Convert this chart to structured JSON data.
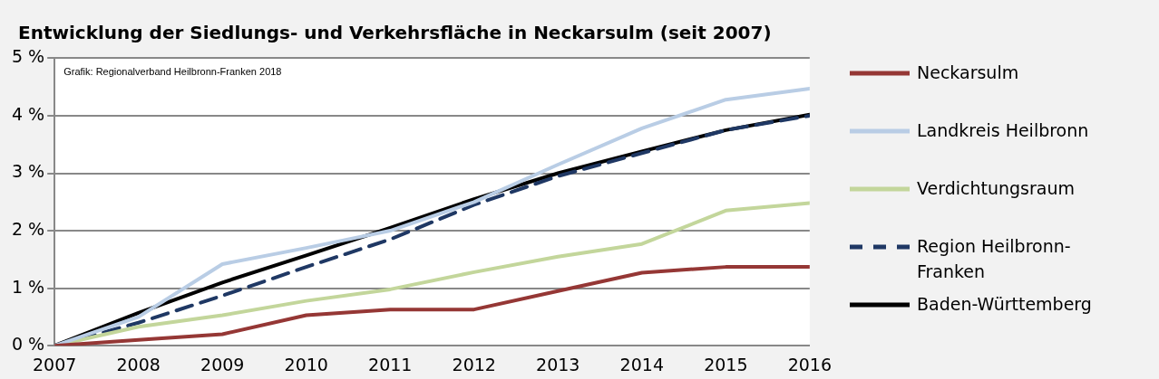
{
  "chart_data": {
    "type": "line",
    "title": "Entwicklung der Siedlungs- und Verkehrsfläche in Neckarsulm (seit 2007)",
    "annotations": [
      "Grafik: Regionalverband Heilbronn-Franken 2018"
    ],
    "x": [
      2007,
      2008,
      2009,
      2010,
      2011,
      2012,
      2013,
      2014,
      2015,
      2016
    ],
    "xlim": [
      2007,
      2016
    ],
    "xticks": [
      2007,
      2008,
      2009,
      2010,
      2011,
      2012,
      2013,
      2014,
      2015,
      2016
    ],
    "ylim": [
      0,
      5
    ],
    "yticks": [
      {
        "value": 0,
        "label": "0 %"
      },
      {
        "value": 1,
        "label": "1 %"
      },
      {
        "value": 2,
        "label": "2 %"
      },
      {
        "value": 3,
        "label": "3 %"
      },
      {
        "value": 4,
        "label": "4 %"
      },
      {
        "value": 5,
        "label": "5 %"
      }
    ],
    "grid": "y",
    "legend": "right",
    "marker": "none",
    "series": [
      {
        "name": "Neckarsulm",
        "color": "#953735",
        "values": [
          0,
          0.1,
          0.2,
          0.53,
          0.63,
          0.63,
          0.95,
          1.27,
          1.37,
          1.37
        ]
      },
      {
        "name": "Landkreis Heilbronn",
        "color": "#b9cde5",
        "values": [
          0,
          0.5,
          1.42,
          1.7,
          2.0,
          2.5,
          3.15,
          3.78,
          4.28,
          4.47
        ]
      },
      {
        "name": "Verdichtungsraum",
        "color": "#c3d69b",
        "values": [
          0,
          0.33,
          0.53,
          0.78,
          0.98,
          1.28,
          1.55,
          1.77,
          2.35,
          2.48
        ]
      },
      {
        "name": "Region Heilbronn-Franken",
        "color": "#1f3864",
        "line_style": "dashed",
        "values": [
          0,
          0.4,
          0.87,
          1.37,
          1.85,
          2.45,
          2.95,
          3.35,
          3.75,
          4.0
        ]
      },
      {
        "name": "Baden-Württemberg",
        "color": "#000000",
        "values": [
          0,
          0.57,
          1.1,
          1.57,
          2.05,
          2.55,
          3.0,
          3.38,
          3.75,
          4.02
        ]
      }
    ]
  }
}
